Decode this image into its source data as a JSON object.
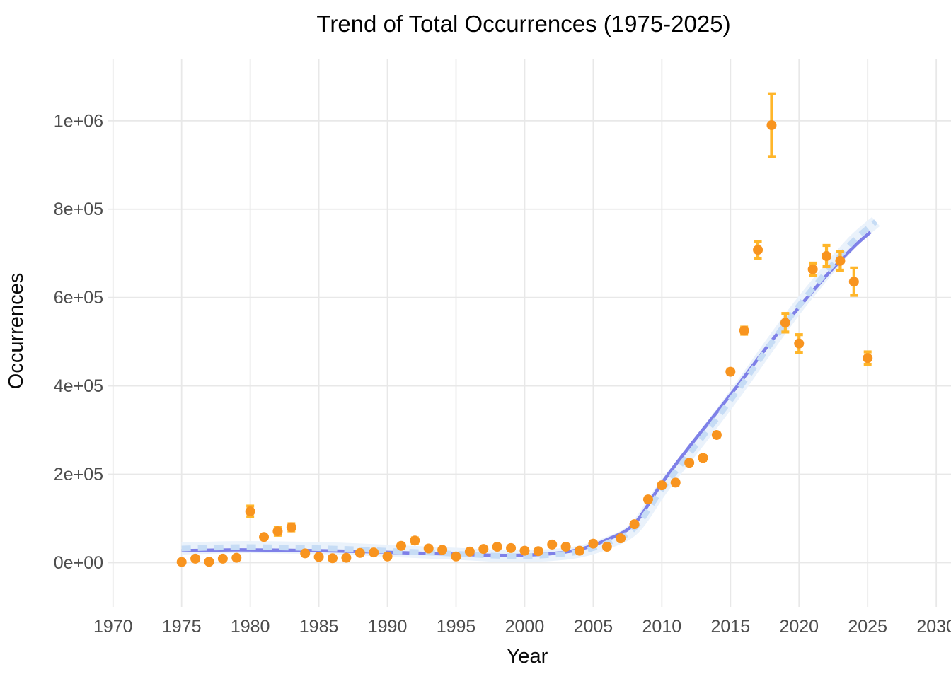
{
  "chart_data": {
    "type": "scatter",
    "title": "Trend of Total Occurrences (1975-2025)",
    "xlabel": "Year",
    "ylabel": "Occurrences",
    "x_ticks": [
      1970,
      1975,
      1980,
      1985,
      1990,
      1995,
      2000,
      2005,
      2010,
      2015,
      2020,
      2025,
      2030
    ],
    "y_ticks": [
      {
        "label": "0e+00",
        "value": 0
      },
      {
        "label": "2e+05",
        "value": 200000
      },
      {
        "label": "4e+05",
        "value": 400000
      },
      {
        "label": "6e+05",
        "value": 600000
      },
      {
        "label": "8e+05",
        "value": 800000
      },
      {
        "label": "1e+06",
        "value": 1000000
      }
    ],
    "xlim": [
      1968.2,
      2031.0
    ],
    "ylim": [
      -55000,
      1140000
    ],
    "grid": "major-only",
    "grid_color": "#E8E8E8",
    "legend": "none",
    "series": [
      {
        "name": "annual-total-occurrences",
        "type": "scatter-with-errorbars",
        "marker_color": "#F8941F",
        "errorbar_color": "#FFB62A",
        "x": [
          1975,
          1976,
          1977,
          1978,
          1979,
          1980,
          1981,
          1982,
          1983,
          1984,
          1985,
          1986,
          1987,
          1988,
          1989,
          1990,
          1991,
          1992,
          1993,
          1994,
          1995,
          1996,
          1997,
          1998,
          1999,
          2000,
          2001,
          2002,
          2003,
          2004,
          2005,
          2006,
          2007,
          2008,
          2009,
          2010,
          2011,
          2012,
          2013,
          2014,
          2015,
          2016,
          2017,
          2018,
          2019,
          2020,
          2021,
          2022,
          2023,
          2024,
          2025
        ],
        "y": [
          1500,
          9000,
          2000,
          9000,
          11000,
          116000,
          58000,
          71000,
          80000,
          21000,
          13000,
          10000,
          11000,
          22000,
          23000,
          14000,
          38000,
          50000,
          32000,
          29000,
          14000,
          25000,
          31000,
          36000,
          33000,
          27000,
          26000,
          41000,
          36000,
          27000,
          43000,
          36000,
          55000,
          87000,
          143000,
          175000,
          181000,
          226000,
          237000,
          289000,
          432000,
          525000,
          708000,
          990000,
          543000,
          496000,
          664000,
          694000,
          683000,
          636000,
          463000
        ],
        "yerr": [
          2000,
          2000,
          2000,
          2000,
          2500,
          12000,
          3000,
          9000,
          8000,
          2500,
          2500,
          2000,
          2500,
          3000,
          3000,
          2000,
          3500,
          6000,
          3500,
          3000,
          2000,
          3000,
          3000,
          3500,
          3000,
          3000,
          3000,
          3500,
          3500,
          3000,
          3500,
          3500,
          4000,
          4500,
          5000,
          5000,
          5000,
          5500,
          5500,
          6000,
          6000,
          8000,
          19000,
          71000,
          21000,
          20000,
          14000,
          24000,
          21000,
          31000,
          14000
        ]
      },
      {
        "name": "smooth-trend-solid",
        "type": "line",
        "style": "solid",
        "color": "#7E80E8",
        "points": [
          [
            1975,
            27000
          ],
          [
            1979,
            29000
          ],
          [
            1983,
            28000
          ],
          [
            1987,
            26000
          ],
          [
            1991,
            22500
          ],
          [
            1995,
            19000
          ],
          [
            1998,
            16500
          ],
          [
            2000,
            17000
          ],
          [
            2002,
            20500
          ],
          [
            2004,
            30000
          ],
          [
            2006,
            52000
          ],
          [
            2008,
            88000
          ],
          [
            2010,
            180000
          ],
          [
            2012,
            262000
          ],
          [
            2014,
            340000
          ],
          [
            2016,
            420000
          ],
          [
            2018,
            502000
          ],
          [
            2020,
            578000
          ],
          [
            2022,
            650000
          ],
          [
            2024,
            715000
          ],
          [
            2025.2,
            748000
          ]
        ]
      },
      {
        "name": "smooth-trend-dashed",
        "type": "line",
        "style": "dashed",
        "color": "#C6DCF5",
        "ribbon_color": "#EAF2FB",
        "points": [
          [
            1975,
            32000
          ],
          [
            1979,
            35000
          ],
          [
            1983,
            34000
          ],
          [
            1987,
            31000
          ],
          [
            1991,
            25500
          ],
          [
            1995,
            20000
          ],
          [
            1998,
            15500
          ],
          [
            2000,
            15000
          ],
          [
            2002,
            17500
          ],
          [
            2004,
            25000
          ],
          [
            2006,
            44000
          ],
          [
            2008,
            78000
          ],
          [
            2010,
            166000
          ],
          [
            2012,
            246000
          ],
          [
            2014,
            326000
          ],
          [
            2016,
            410000
          ],
          [
            2018,
            498000
          ],
          [
            2020,
            582000
          ],
          [
            2022,
            658000
          ],
          [
            2024,
            729000
          ],
          [
            2025.6,
            772000
          ]
        ]
      }
    ]
  }
}
